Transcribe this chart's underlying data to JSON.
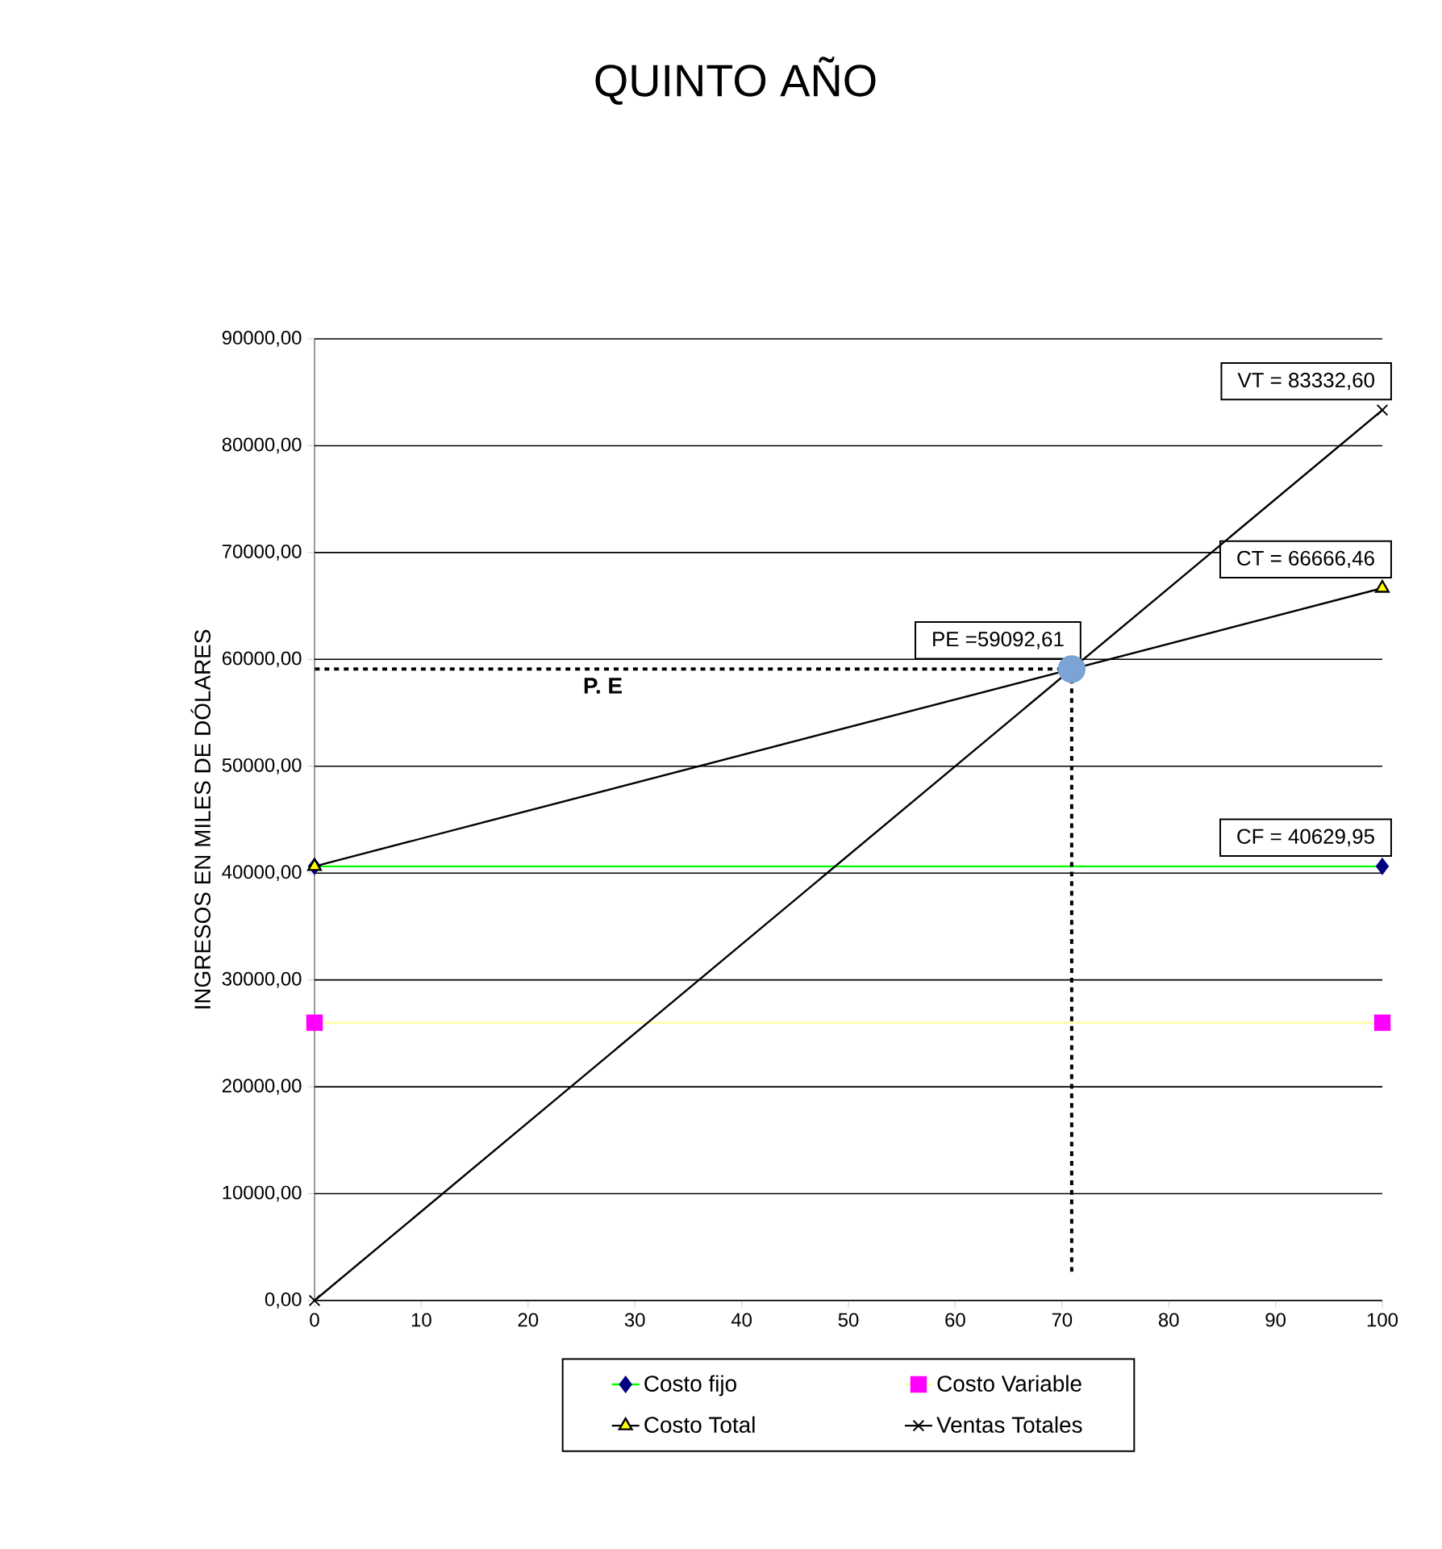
{
  "chart_data": {
    "type": "line",
    "title": "QUINTO AÑO",
    "ylabel": "INGRESOS EN MILES DE DÓLARES",
    "x": [
      0,
      100
    ],
    "xlim": [
      0,
      100
    ],
    "ylim": [
      0,
      90000
    ],
    "xticks": [
      0,
      10,
      20,
      30,
      40,
      50,
      60,
      70,
      80,
      90,
      100
    ],
    "yticks": [
      {
        "value": 0,
        "label": "0,00"
      },
      {
        "value": 10000,
        "label": "10000,00"
      },
      {
        "value": 20000,
        "label": "20000,00"
      },
      {
        "value": 30000,
        "label": "30000,00"
      },
      {
        "value": 40000,
        "label": "40000,00"
      },
      {
        "value": 50000,
        "label": "50000,00"
      },
      {
        "value": 60000,
        "label": "60000,00"
      },
      {
        "value": 70000,
        "label": "70000,00"
      },
      {
        "value": 80000,
        "label": "80000,00"
      },
      {
        "value": 90000,
        "label": "90000,00"
      }
    ],
    "grid": "y",
    "legend": "bottom",
    "series": [
      {
        "name": "Costo fijo",
        "color": "#00ff00",
        "colors": [
          "#000080",
          "#000080"
        ],
        "marker": "diamond",
        "values": [
          40629.95,
          40629.95
        ],
        "value_labels": [
          null,
          "CF = 40629,95"
        ]
      },
      {
        "name": "Costo Variable",
        "color": "#ffff99",
        "colors": [
          "#ff00ff",
          "#ff00ff"
        ],
        "marker": "square",
        "values": [
          26000,
          26000
        ]
      },
      {
        "name": "Costo Total",
        "color": "#000000",
        "colors": [
          "#ffff00",
          "#ffff00"
        ],
        "marker": "triangle",
        "values": [
          40629.95,
          66666.46
        ],
        "value_labels": [
          null,
          "CT = 66666,46"
        ]
      },
      {
        "name": "Ventas Totales",
        "color": "#000000",
        "marker": "cross",
        "values": [
          0,
          83332.6
        ],
        "value_labels": [
          null,
          "VT = 83332,60"
        ]
      },
      {
        "type": "scatter",
        "x": [
          70.91
        ],
        "color": "#7ba3d6",
        "marker": "circle",
        "values": [
          59092.61
        ],
        "value_labels": [
          "PE =59092,61"
        ]
      }
    ],
    "ref_lines": [
      {
        "axis": "y",
        "value": 59092.61,
        "color": "#000000",
        "line_style": "dashed"
      },
      {
        "axis": "x",
        "value": 70.91,
        "color": "#000000",
        "line_style": "dashed"
      }
    ],
    "annotations": [
      "P. E"
    ]
  }
}
